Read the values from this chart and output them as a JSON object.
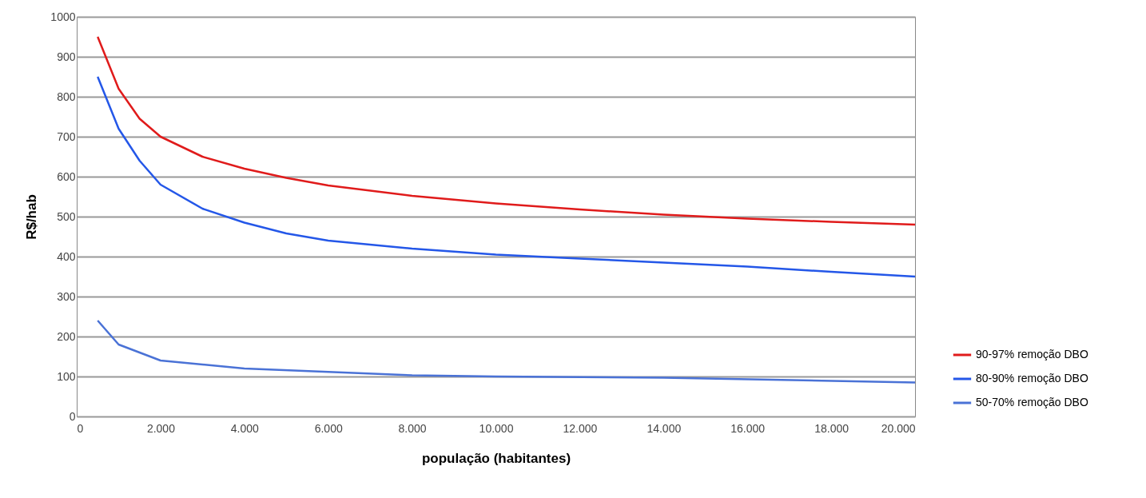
{
  "chart_data": {
    "type": "line",
    "xlabel": "população (habitantes)",
    "ylabel": "R$/hab",
    "x": [
      500,
      1000,
      1500,
      2000,
      3000,
      4000,
      5000,
      6000,
      8000,
      10000,
      12000,
      14000,
      16000,
      18000,
      20000
    ],
    "series": [
      {
        "name": "90-97% remoção DBO",
        "color": "#e01b1b",
        "values": [
          950,
          820,
          745,
          700,
          650,
          620,
          597,
          578,
          552,
          533,
          518,
          505,
          495,
          487,
          480
        ]
      },
      {
        "name": "80-90% remoção DBO",
        "color": "#2457e8",
        "values": [
          850,
          720,
          640,
          580,
          520,
          485,
          458,
          440,
          420,
          405,
          395,
          385,
          375,
          362,
          350
        ]
      },
      {
        "x": [
          500,
          1000,
          2000,
          4000,
          8000,
          10000,
          14000,
          20000
        ],
        "name": "50-70% remoção DBO",
        "color": "#4a72d6",
        "values": [
          240,
          180,
          140,
          120,
          103,
          100,
          97,
          85
        ]
      }
    ],
    "xlim": [
      0,
      20000
    ],
    "ylim": [
      0,
      1000
    ],
    "xticks": [
      0,
      {
        "value": 2000,
        "label": "2.000"
      },
      {
        "value": 4000,
        "label": "4.000"
      },
      {
        "value": 6000,
        "label": "6.000"
      },
      {
        "value": 8000,
        "label": "8.000"
      },
      {
        "value": 10000,
        "label": "10.000"
      },
      {
        "value": 12000,
        "label": "12.000"
      },
      {
        "value": 14000,
        "label": "14.000"
      },
      {
        "value": 16000,
        "label": "16.000"
      },
      {
        "value": 18000,
        "label": "18.000"
      },
      {
        "value": 20000,
        "label": "20.000"
      }
    ],
    "yticks": [
      0,
      100,
      200,
      300,
      400,
      500,
      600,
      700,
      800,
      900,
      1000
    ],
    "grid": "y",
    "legend": "right",
    "marker": "none",
    "line_style": "solid"
  }
}
